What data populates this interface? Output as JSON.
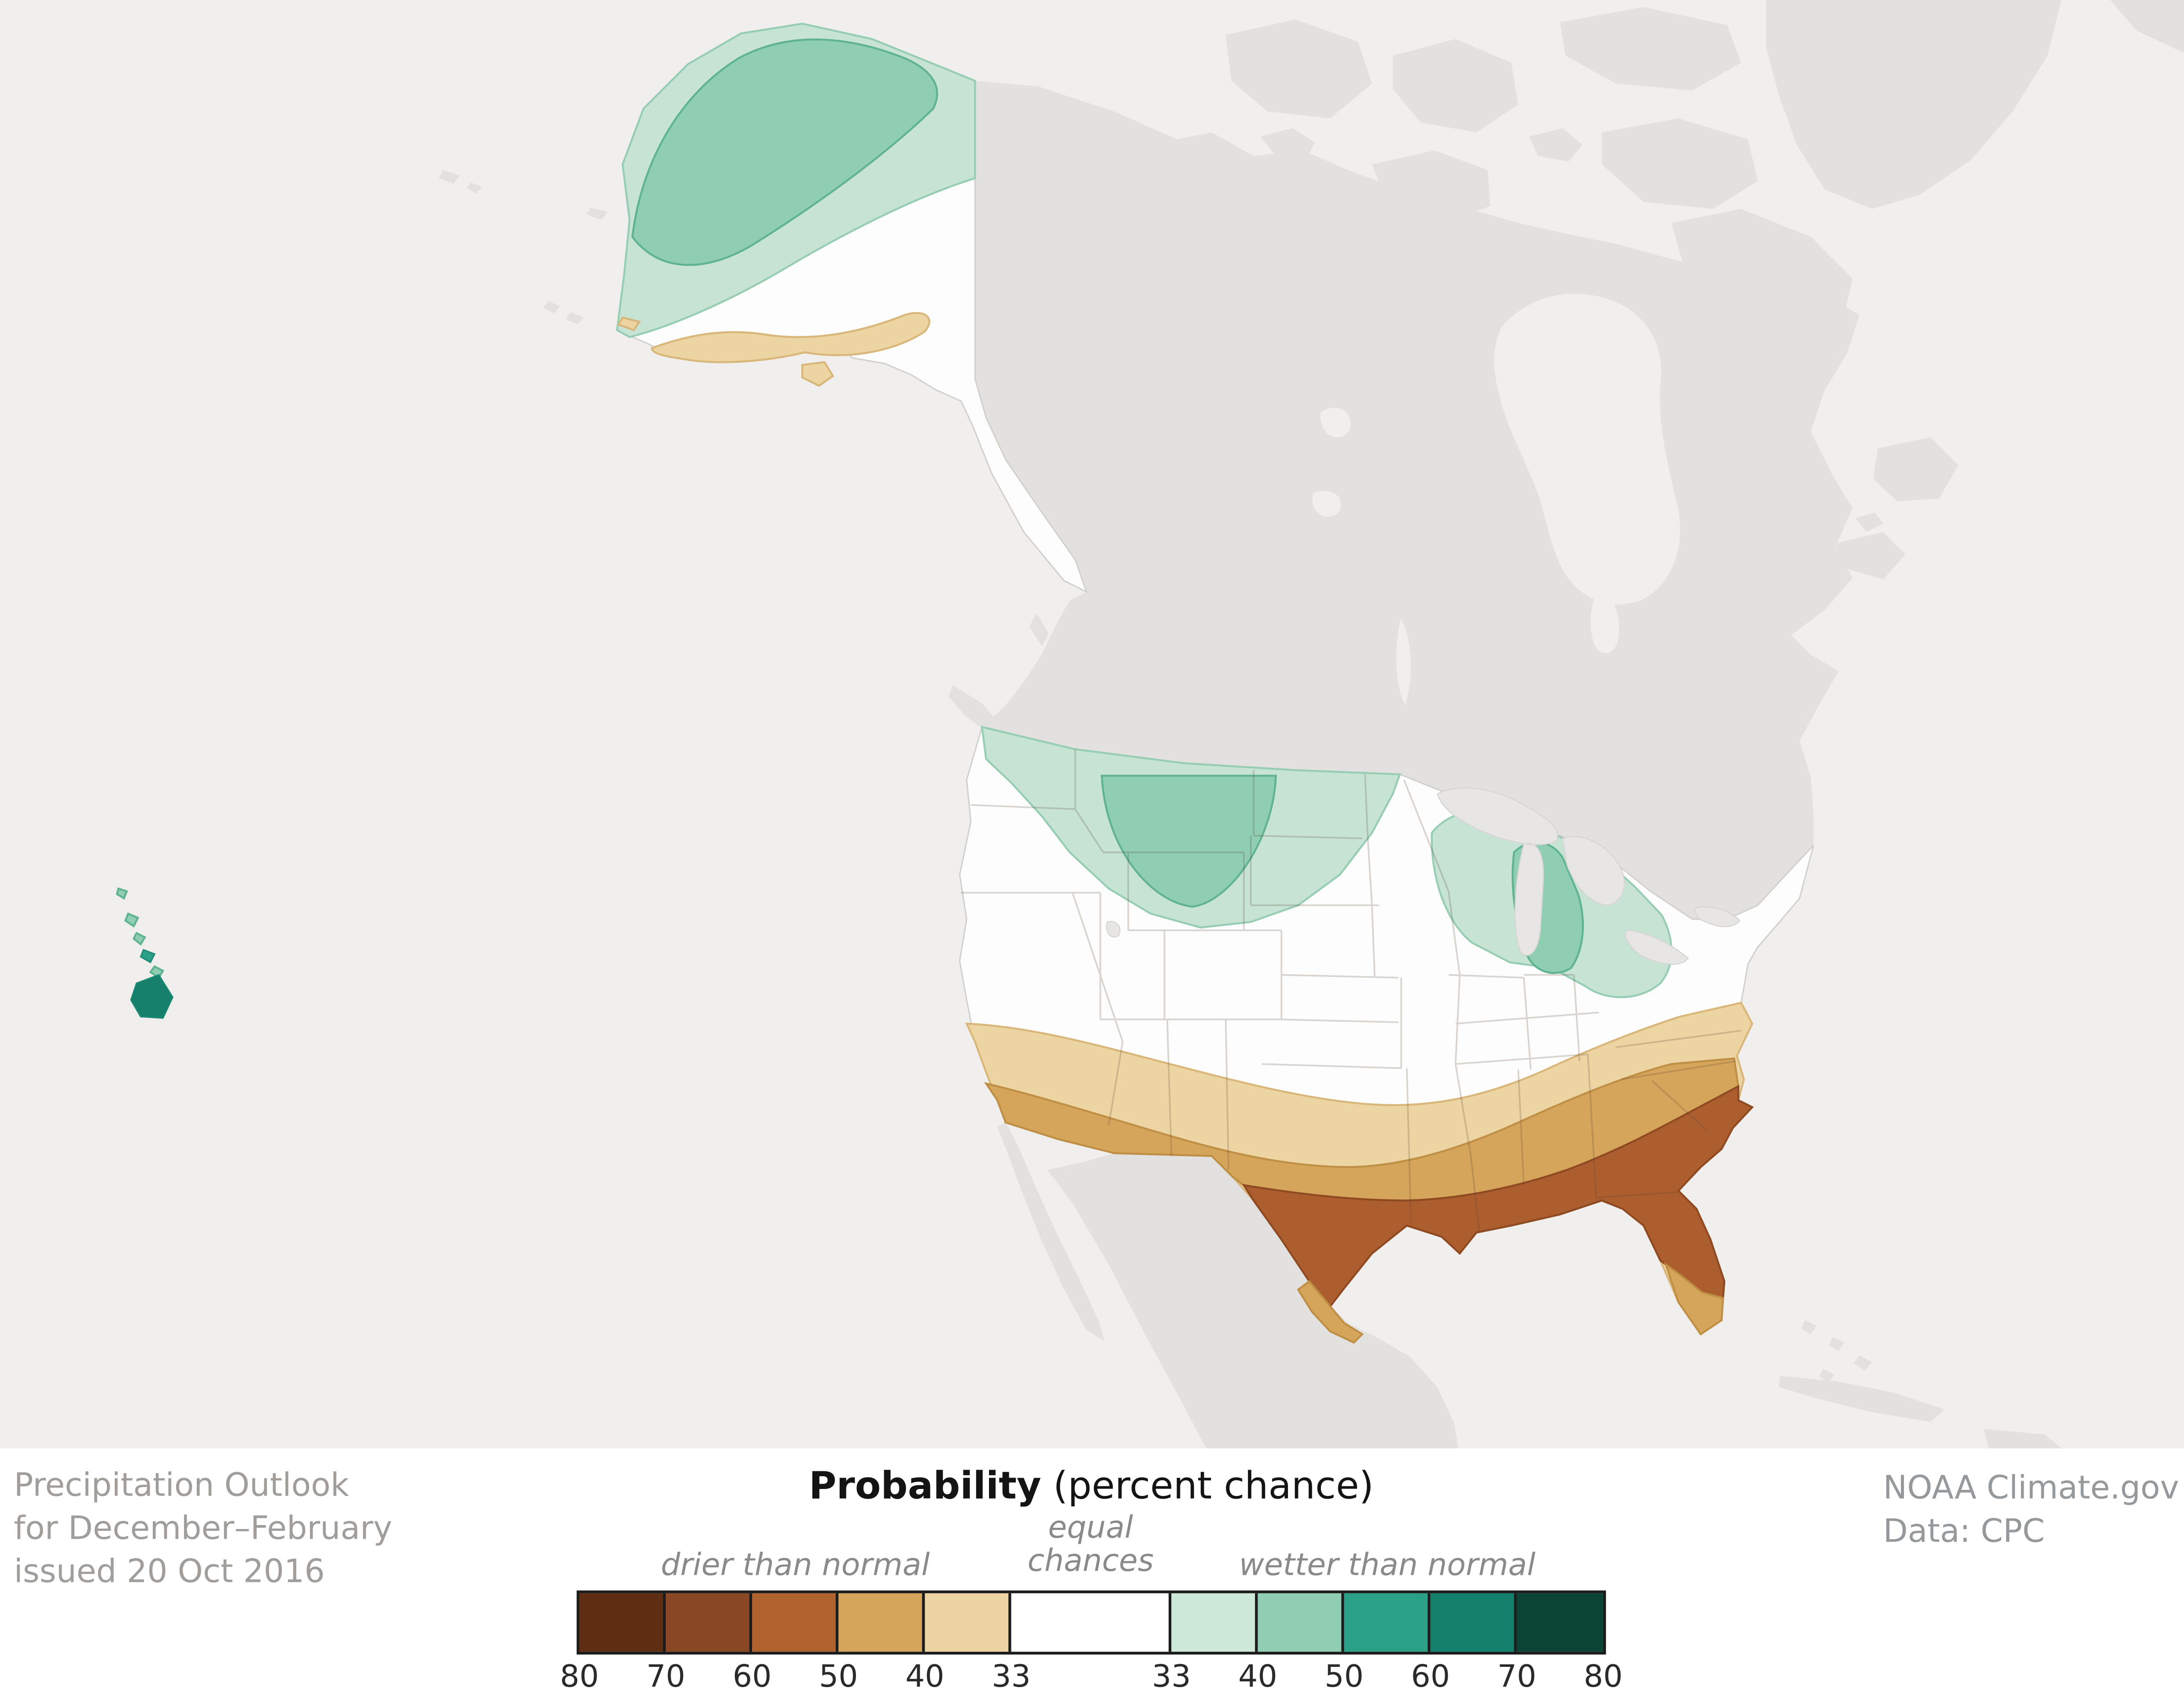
{
  "credits": {
    "left": [
      "Precipitation Outlook",
      "for December–February",
      "issued 20 Oct 2016"
    ],
    "right": [
      "NOAA Climate.gov",
      "Data: CPC"
    ]
  },
  "legend": {
    "title_bold": "Probability",
    "title_rest": " (percent chance)",
    "drier_label": "drier than normal",
    "equal_label": [
      "equal",
      "chances"
    ],
    "wetter_label": "wetter than normal",
    "cells": [
      {
        "name": "drier-80",
        "color": "#5f2d11",
        "w": 62
      },
      {
        "name": "drier-70",
        "color": "#8a4724",
        "w": 62
      },
      {
        "name": "drier-60",
        "color": "#b0622f",
        "w": 62
      },
      {
        "name": "drier-50",
        "color": "#d6a55c",
        "w": 62
      },
      {
        "name": "drier-40",
        "color": "#ecd5a3",
        "w": 62
      },
      {
        "name": "equal-chances",
        "color": "#ffffff",
        "w": 115
      },
      {
        "name": "wetter-40",
        "color": "#cde7d9",
        "w": 62
      },
      {
        "name": "wetter-50",
        "color": "#8fceb3",
        "w": 62
      },
      {
        "name": "wetter-60",
        "color": "#2aa186",
        "w": 62
      },
      {
        "name": "wetter-70",
        "color": "#13806c",
        "w": 62
      },
      {
        "name": "wetter-80",
        "color": "#0b4335",
        "w": 62
      }
    ],
    "ticks": [
      "80",
      "70",
      "60",
      "50",
      "40",
      "33",
      "33",
      "40",
      "50",
      "60",
      "70",
      "80"
    ]
  },
  "map": {
    "colors": {
      "ocean": "#f0efee",
      "land": "#e2e1e0",
      "lake": "#e7e6e5",
      "us_fill": "#fdfdfd",
      "wet_33_40": "#c6e3d3",
      "wet_40_50": "#8fceb3",
      "wet_50_60": "#2aa186",
      "wet_60_70": "#16806c",
      "dry_33_40": "#ecd5a3",
      "dry_40_50": "#d6a55c",
      "dry_50_60": "#ad5e2f"
    }
  }
}
